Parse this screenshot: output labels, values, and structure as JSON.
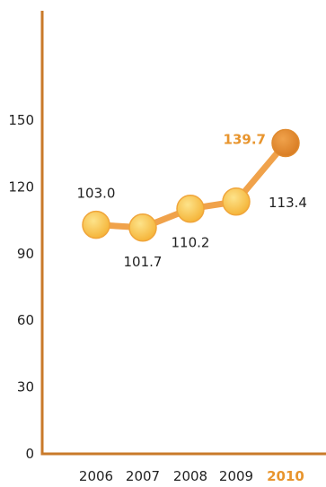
{
  "chart_data": {
    "type": "line",
    "title": "",
    "xlabel": "",
    "ylabel": "",
    "categories": [
      "2006",
      "2007",
      "2008",
      "2009",
      "2010"
    ],
    "values": [
      103.0,
      101.7,
      110.2,
      113.4,
      139.7
    ],
    "value_labels": [
      "103.0",
      "101.7",
      "110.2",
      "113.4",
      "139.7"
    ],
    "highlight_index": 4,
    "ylim": [
      0,
      150
    ],
    "yticks": [
      0,
      30,
      60,
      90,
      120,
      150
    ],
    "ytick_labels": [
      "0",
      "30",
      "60",
      "90",
      "120",
      "150"
    ],
    "label_positions": [
      "above",
      "below",
      "below",
      "right",
      "left"
    ],
    "grid": false,
    "legend": "none",
    "colors": {
      "axis": "#c97a2a",
      "line": "#f0a24b",
      "marker": "#f7c14a",
      "marker_stroke": "#f0a53a",
      "highlight_marker": "#e08a2e",
      "highlight_text": "#e8952e",
      "text": "#222222"
    }
  }
}
